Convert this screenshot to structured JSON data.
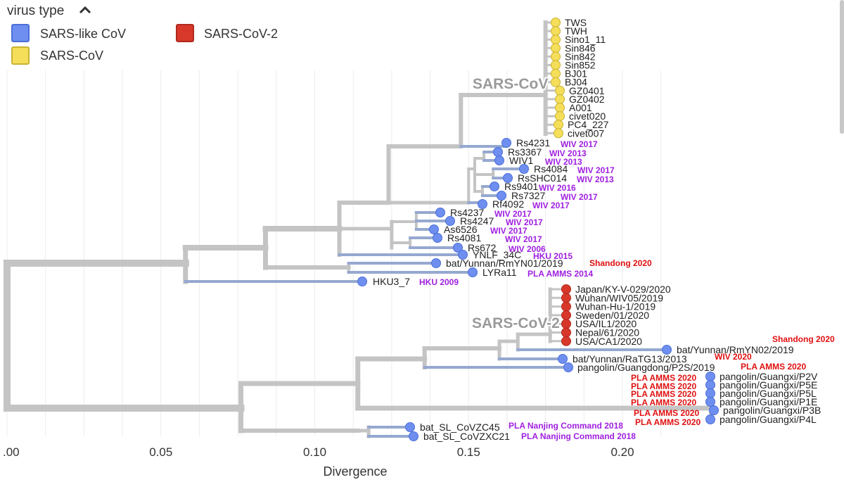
{
  "legend": {
    "title": "virus type",
    "items": [
      {
        "label": "SARS-like CoV",
        "color": "#6f8ff0",
        "border": "#4a6fd8"
      },
      {
        "label": "SARS-CoV-2",
        "color": "#d8382a",
        "border": "#b02a1e"
      },
      {
        "label": "SARS-CoV",
        "color": "#f5de5a",
        "border": "#c9b232"
      }
    ]
  },
  "axis": {
    "label": "Divergence",
    "ticks": [
      {
        "value": 0.0,
        "label": ".00"
      },
      {
        "value": 0.05,
        "label": "0.05"
      },
      {
        "value": 0.1,
        "label": "0.10"
      },
      {
        "value": 0.15,
        "label": "0.15"
      },
      {
        "value": 0.2,
        "label": "0.20"
      }
    ]
  },
  "colors": {
    "branch": "#c4c4c4",
    "branch_sarslike": "#95a8d0",
    "branch_sars2": "#c4c4c4",
    "note_purple": "#a020e0",
    "note_red": "#e01010",
    "clade_label": "#9a9a9a"
  },
  "clades": {
    "sars": "SARS-CoV",
    "sars2": "SARS-CoV-2"
  },
  "tips": {
    "sars": [
      "TWS",
      "TWH",
      "Sino1_11",
      "Sin846",
      "Sin842",
      "Sin852",
      "BJ01",
      "BJ04",
      "GZ0401",
      "GZ0402",
      "A001",
      "civet020",
      "PC4_227",
      "civet007"
    ],
    "sarslike": [
      {
        "name": "Rs4231",
        "div": 0.1605,
        "note": "WIV 2017"
      },
      {
        "name": "Rs3367",
        "div": 0.1575,
        "note": "WIV 2013"
      },
      {
        "name": "WIV1",
        "div": 0.1575,
        "note": "WIV 2013"
      },
      {
        "name": "Rs4084",
        "div": 0.1665,
        "note": "WIV 2017"
      },
      {
        "name": "RsSHC014",
        "div": 0.161,
        "note": "WIV 2013"
      },
      {
        "name": "Rs9401",
        "div": 0.156,
        "note": "WIV 2016"
      },
      {
        "name": "Rs7327",
        "div": 0.158,
        "note": "WIV 2017"
      },
      {
        "name": "Rf4092",
        "div": 0.154,
        "note": "WIV 2017"
      },
      {
        "name": "Rs4237",
        "div": 0.1405,
        "note": "WIV 2017"
      },
      {
        "name": "Rs4247",
        "div": 0.1435,
        "note": "WIV 2017"
      },
      {
        "name": "As6526",
        "div": 0.1375,
        "note": "WIV 2017"
      },
      {
        "name": "Rs4081",
        "div": 0.1395,
        "note": "WIV 2017"
      },
      {
        "name": "Rs672",
        "div": 0.1465,
        "note": "WIV 2006"
      },
      {
        "name": "YNLF_34C",
        "div": 0.1485,
        "note": "HKU 2015"
      },
      {
        "name": "bat/Yunnan/RmYN01/2019",
        "div": 0.142,
        "note": "Shandong 2020",
        "red": true
      },
      {
        "name": "LYRa11",
        "div": 0.15,
        "note": "PLA AMMS 2014"
      },
      {
        "name": "HKU3_7",
        "div": 0.1145,
        "note": "HKU 2009"
      }
    ],
    "sars2": [
      "Japan/KY-V-029/2020",
      "Wuhan/WIV05/2019",
      "Wuhan-Hu-1/2019",
      "Sweden/01/2020",
      "USA/IL1/2020",
      "Nepal/61/2020",
      "USA/CA1/2020"
    ],
    "sars2_relatives": [
      {
        "name": "bat/Yunnan/RmYN02/2019",
        "div": 0.2125,
        "note": "Shandong 2020"
      },
      {
        "name": "bat/Yunnan/RaTG13/2013",
        "div": 0.18,
        "note": "WIV 2020"
      },
      {
        "name": "pangolin/Guangdong/P2S/2019",
        "div": 0.181,
        "note": "PLA AMMS 2020"
      }
    ],
    "pangolins": [
      {
        "name": "pangolin/Guangxi/P2V",
        "note": "PLA AMMS 2020"
      },
      {
        "name": "pangolin/Guangxi/P5E",
        "note": "PLA AMMS 2020"
      },
      {
        "name": "pangolin/Guangxi/P5L",
        "note": "PLA AMMS 2020"
      },
      {
        "name": "pangolin/Guangxi/P1E",
        "note": "PLA AMMS 2020"
      },
      {
        "name": "pangolin/Guangxi/P3B",
        "note": "PLA AMMS 2020"
      },
      {
        "name": "pangolin/Guangxi/P4L",
        "note": "PLA AMMS 2020"
      }
    ],
    "zc": [
      {
        "name": "bat_SL_CoVZC45",
        "div": 0.13,
        "note": "PLA Nanjing Command 2018"
      },
      {
        "name": "bat_SL_CoVZXC21",
        "div": 0.131,
        "note": "PLA Nanjing Command 2018"
      }
    ]
  }
}
